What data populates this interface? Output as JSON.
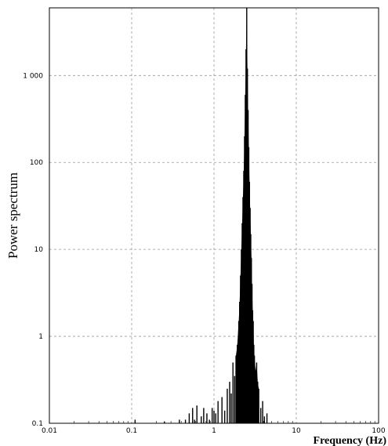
{
  "chart_data": {
    "type": "bar",
    "ylabel": "Power spectrum",
    "xlabel": "Frequency (Hz)",
    "x_scale": "log",
    "y_scale": "log",
    "xlim": [
      0.01,
      100
    ],
    "ylim": [
      0.1,
      6000
    ],
    "grid": true,
    "grid_style": "dashed",
    "bar_color": "#000000",
    "x_ticks": [
      {
        "value": 0.01,
        "label": "0.01"
      },
      {
        "value": 0.1,
        "label": "0.1"
      },
      {
        "value": 1,
        "label": "1"
      },
      {
        "value": 10,
        "label": "10"
      },
      {
        "value": 100,
        "label": "100"
      }
    ],
    "y_ticks": [
      {
        "value": 0.1,
        "label": "0.1"
      },
      {
        "value": 1,
        "label": "1"
      },
      {
        "value": 10,
        "label": "10"
      },
      {
        "value": 100,
        "label": "100"
      },
      {
        "value": 1000,
        "label": "1 000"
      }
    ],
    "x": [
      0.11,
      0.25,
      0.38,
      0.45,
      0.5,
      0.55,
      0.58,
      0.62,
      0.7,
      0.75,
      0.82,
      0.88,
      0.95,
      1.0,
      1.05,
      1.12,
      1.25,
      1.35,
      1.45,
      1.55,
      1.62,
      1.7,
      1.78,
      1.85,
      1.92,
      2.0,
      2.05,
      2.1,
      2.15,
      2.2,
      2.25,
      2.3,
      2.35,
      2.4,
      2.45,
      2.5,
      2.55,
      2.6,
      2.65,
      2.7,
      2.75,
      2.8,
      2.85,
      2.9,
      2.95,
      3.0,
      3.05,
      3.1,
      3.2,
      3.3,
      3.4,
      3.5,
      3.7,
      3.9,
      4.1,
      4.4
    ],
    "values": [
      0.11,
      0.105,
      0.11,
      0.11,
      0.13,
      0.15,
      0.11,
      0.16,
      0.12,
      0.15,
      0.13,
      0.11,
      0.15,
      0.14,
      0.13,
      0.18,
      0.2,
      0.14,
      0.25,
      0.3,
      0.22,
      0.5,
      0.35,
      0.6,
      0.8,
      1.5,
      2.5,
      5,
      10,
      20,
      40,
      80,
      200,
      600,
      2000,
      6000,
      1200,
      400,
      150,
      60,
      30,
      15,
      8,
      4,
      2,
      1.5,
      0.8,
      0.6,
      0.4,
      0.5,
      0.3,
      0.25,
      0.15,
      0.18,
      0.12,
      0.13
    ]
  }
}
